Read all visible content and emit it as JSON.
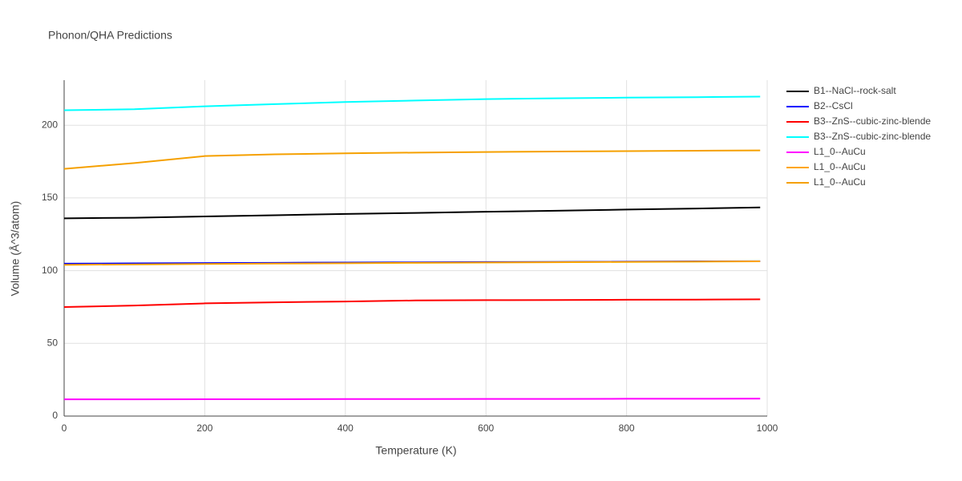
{
  "chart_data": {
    "type": "line",
    "title": "Phonon/QHA Predictions",
    "xlabel": "Temperature (K)",
    "ylabel": "Volume (Å^3/atom)",
    "x": [
      0,
      100,
      200,
      300,
      400,
      500,
      600,
      700,
      800,
      900,
      990
    ],
    "series": [
      {
        "name": "B1--NaCl--rock-salt",
        "color": "#000000",
        "values": [
          136,
          136.4,
          137.3,
          138.1,
          139,
          139.7,
          140.5,
          141.2,
          142,
          142.7,
          143.5
        ]
      },
      {
        "name": "B2--CsCl",
        "color": "#0000ff",
        "values": [
          104.8,
          105,
          105.2,
          105.4,
          105.6,
          105.7,
          105.9,
          106,
          106.2,
          106.4,
          106.5
        ]
      },
      {
        "name": "B3--ZnS--cubic-zinc-blende",
        "color": "#ff0000",
        "values": [
          75,
          76,
          77.5,
          78.2,
          78.8,
          79.5,
          79.7,
          79.8,
          80,
          80.1,
          80.3
        ]
      },
      {
        "name": "B3--ZnS--cubic-zinc-blende",
        "color": "#00ffff",
        "values": [
          210.3,
          211,
          213,
          214.5,
          216,
          217,
          218,
          218.5,
          219,
          219.3,
          219.7
        ]
      },
      {
        "name": "L1_0--AuCu",
        "color": "#ff00ff",
        "values": [
          11.5,
          11.5,
          11.6,
          11.6,
          11.7,
          11.7,
          11.8,
          11.8,
          11.9,
          11.9,
          12
        ]
      },
      {
        "name": "L1_0--AuCu",
        "color": "#ffa500",
        "values": [
          104,
          104.3,
          104.6,
          104.9,
          105.1,
          105.4,
          105.6,
          105.8,
          106,
          106.2,
          106.4
        ]
      },
      {
        "name": "L1_0--AuCu",
        "color": "#f5a000",
        "values": [
          170,
          174,
          178.8,
          180,
          180.7,
          181.2,
          181.6,
          181.9,
          182.2,
          182.5,
          182.7
        ]
      }
    ],
    "xlim": [
      0,
      1000
    ],
    "xticks": [
      0,
      200,
      400,
      600,
      800,
      1000
    ],
    "ylim": [
      0,
      231
    ],
    "yticks": [
      0,
      50,
      100,
      150,
      200
    ],
    "grid": true
  }
}
